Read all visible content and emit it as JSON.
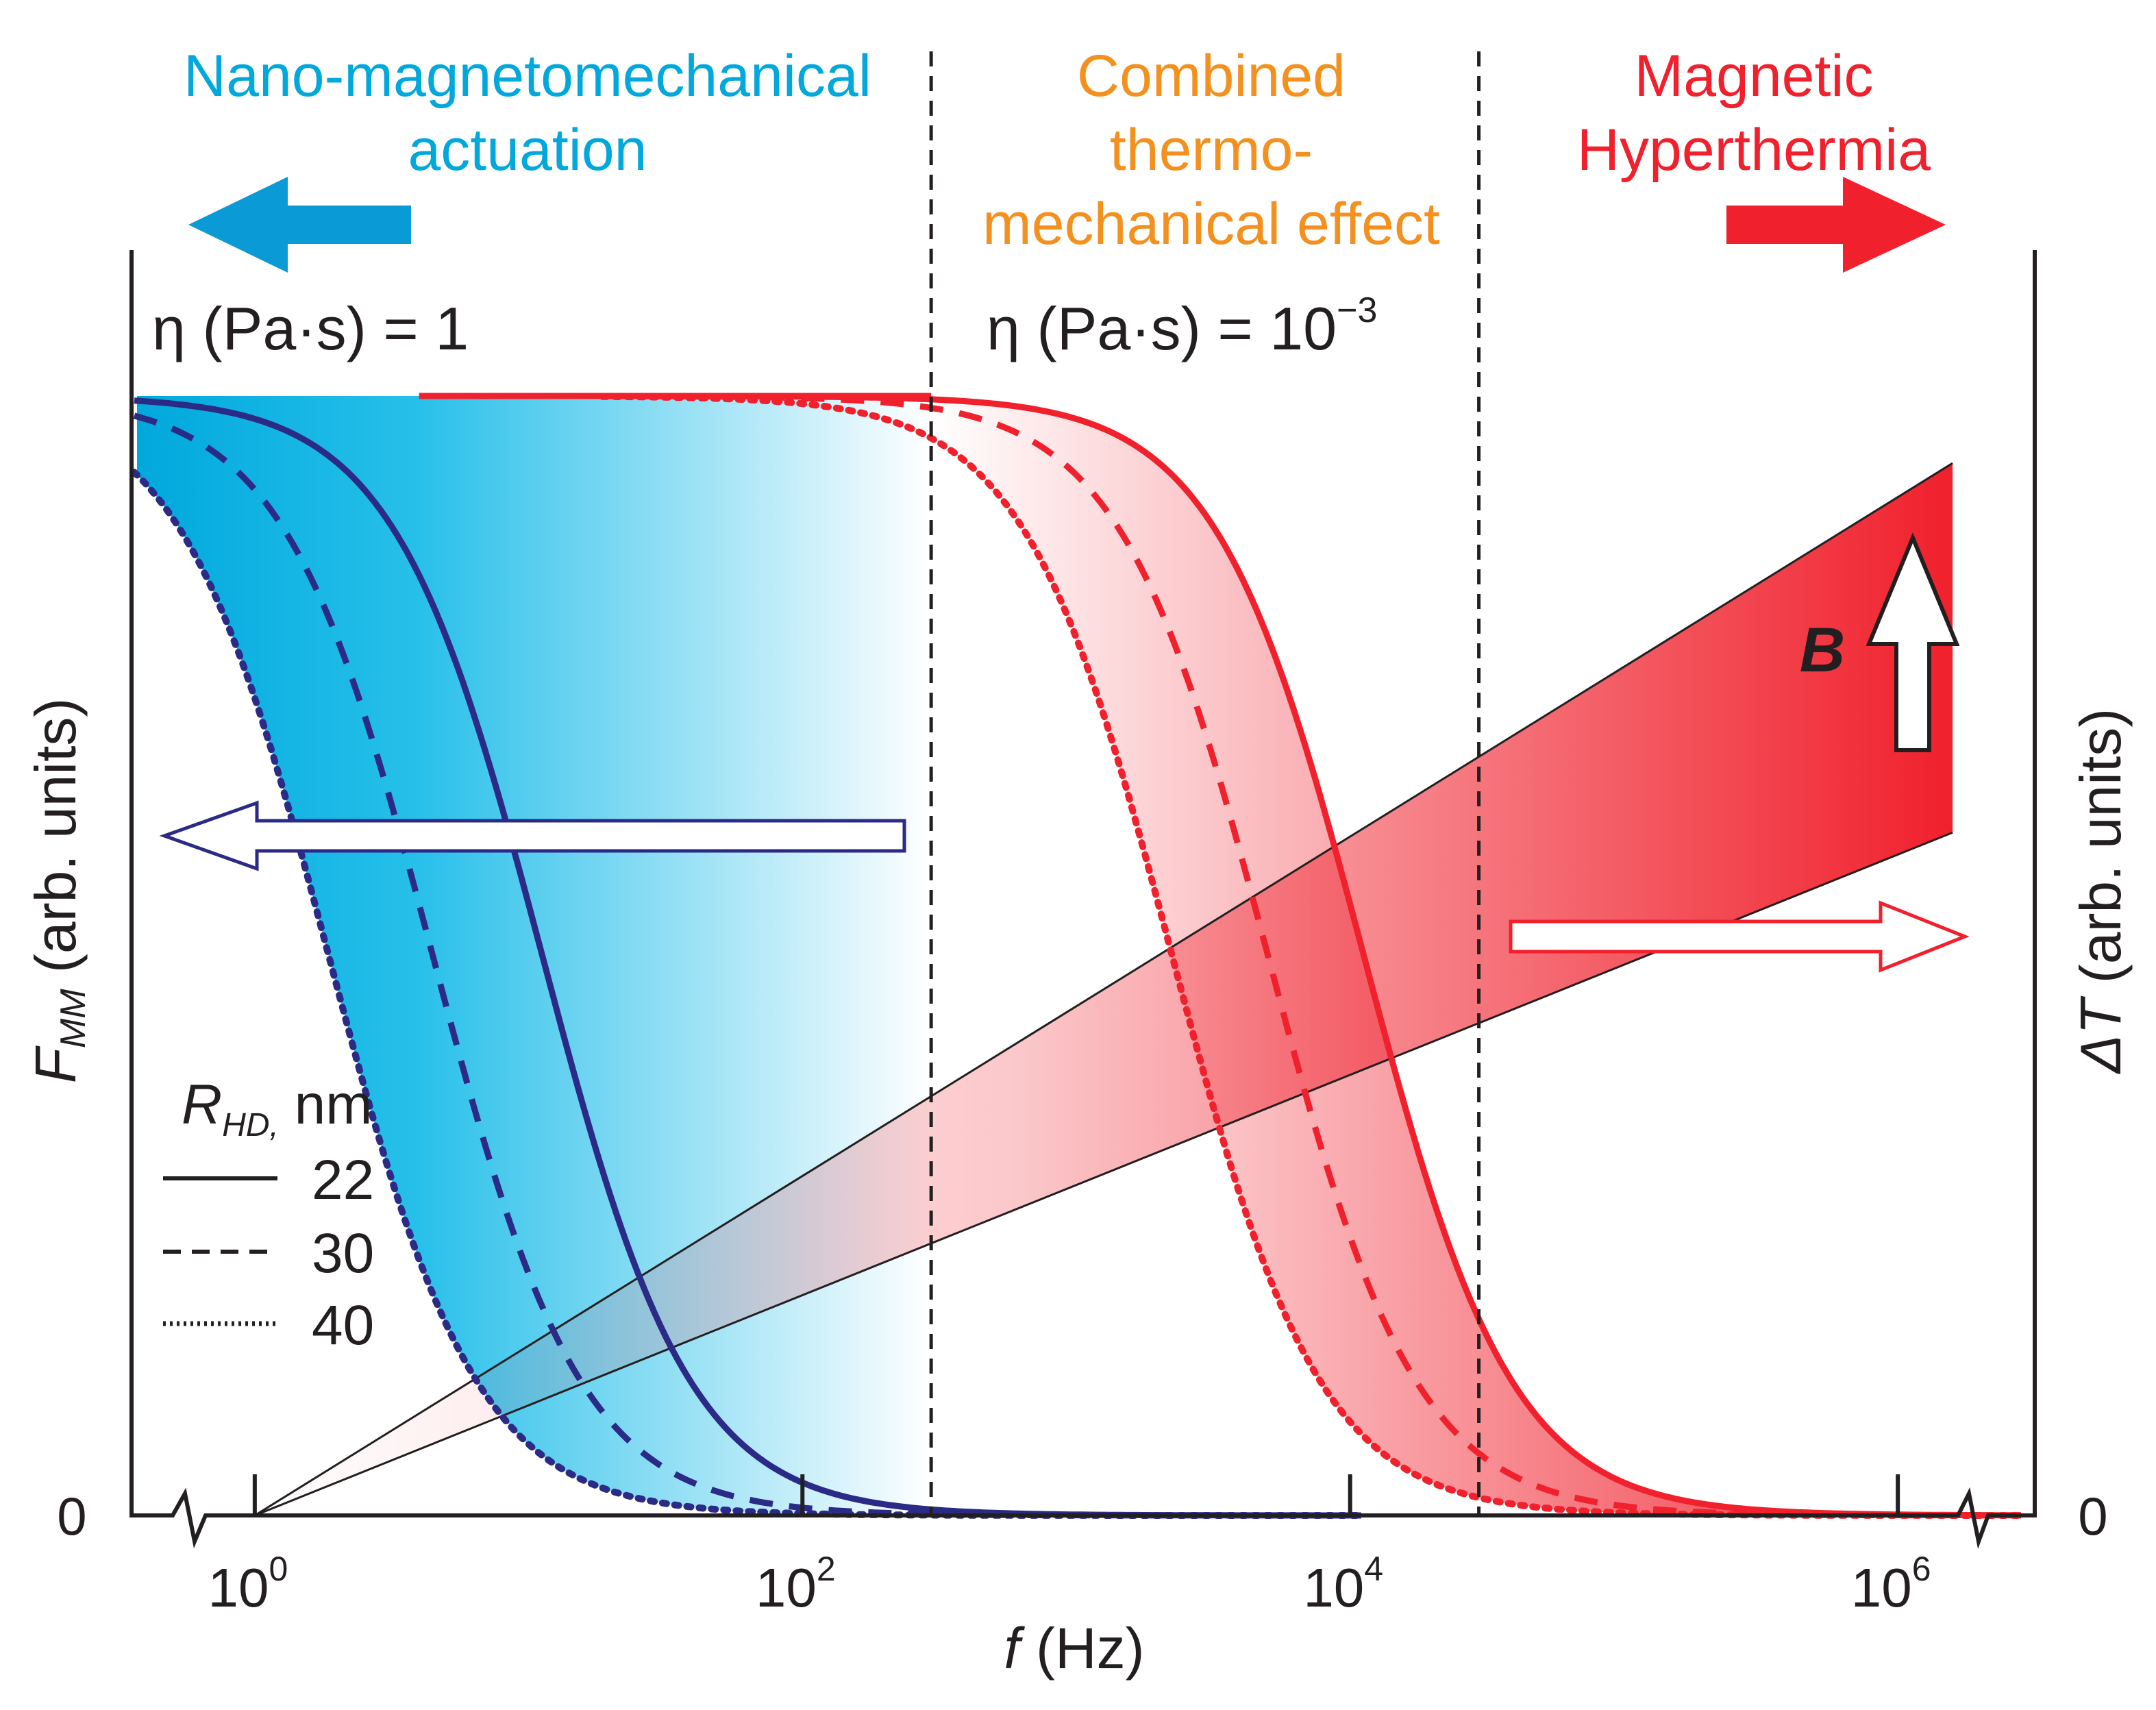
{
  "colors": {
    "blue_region": "#00a8dc",
    "blue_curve": "#2b2a86",
    "orange_text": "#f4901e",
    "red_curve": "#f0202c",
    "red_region": "#f0202c",
    "axis": "#231f20"
  },
  "regions": {
    "left": {
      "line1": "Nano-magnetomechanical",
      "line2": "actuation",
      "arrow_icon": "arrow-left-icon"
    },
    "middle": {
      "line1": "Combined",
      "line2": "thermo-",
      "line3": "mechanical effect"
    },
    "right": {
      "line1": "Magnetic",
      "line2": "Hyperthermia",
      "arrow_icon": "arrow-right-icon"
    }
  },
  "viscosity": {
    "left_label": "η (Pa·s) = 1",
    "right_label_main": "η (Pa·s) = 10",
    "right_label_exp": "−3"
  },
  "b_field": {
    "label": "B",
    "icon": "arrow-up-icon"
  },
  "legend": {
    "title_var": "R",
    "title_sub": "HD,",
    "title_unit": " nm",
    "items": [
      {
        "style": "solid",
        "label": "22"
      },
      {
        "style": "dashed",
        "label": "30"
      },
      {
        "style": "dotted",
        "label": "40"
      }
    ]
  },
  "chart_data": {
    "type": "line",
    "title": "",
    "xlabel_var": "f",
    "xlabel_unit": " (Hz)",
    "ylabel_left_var": "F",
    "ylabel_left_sub": "MM",
    "ylabel_left_unit": " (arb. units)",
    "ylabel_right_var": "ΔT",
    "ylabel_right_unit": " (arb. units)",
    "x_scale": "log10",
    "xlim_log10": [
      -0.45,
      6.5
    ],
    "ylim": [
      0,
      1.0
    ],
    "x_ticks": [
      {
        "log10": 0,
        "base": "10",
        "exp": "0"
      },
      {
        "log10": 2,
        "base": "10",
        "exp": "2"
      },
      {
        "log10": 4,
        "base": "10",
        "exp": "4"
      },
      {
        "log10": 6,
        "base": "10",
        "exp": "6"
      }
    ],
    "y_zero_label_left": "0",
    "y_zero_label_right": "0",
    "region_boundaries_log10": [
      2.47,
      4.47
    ],
    "series": [
      {
        "name": "η = 1 Pa·s, R_HD = 22 nm",
        "color": "blue",
        "style": "solid",
        "cutoff_log10": 1.05
      },
      {
        "name": "η = 1 Pa·s, R_HD = 30 nm",
        "color": "blue",
        "style": "dashed",
        "cutoff_log10": 0.65
      },
      {
        "name": "η = 1 Pa·s, R_HD = 40 nm",
        "color": "blue",
        "style": "dotted",
        "cutoff_log10": 0.27
      },
      {
        "name": "η = 10⁻³ Pa·s, R_HD = 22 nm",
        "color": "red",
        "style": "solid",
        "cutoff_log10": 4.05
      },
      {
        "name": "η = 10⁻³ Pa·s, R_HD = 30 nm",
        "color": "red",
        "style": "dashed",
        "cutoff_log10": 3.7
      },
      {
        "name": "η = 10⁻³ Pa·s, R_HD = 40 nm",
        "color": "red",
        "style": "dotted",
        "cutoff_log10": 3.35
      }
    ],
    "temperature_band": {
      "start_log10": 0,
      "upper_end_value": 0.94,
      "lower_end_value": 0.61,
      "end_log10": 6.2
    }
  }
}
